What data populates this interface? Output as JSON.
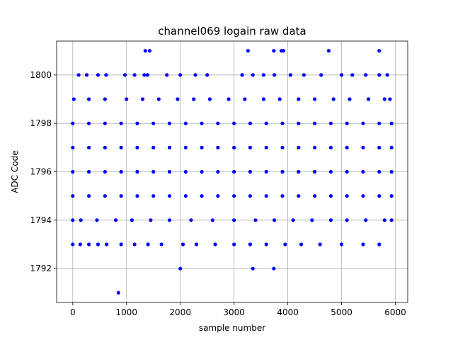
{
  "chart_data": {
    "type": "scatter",
    "title": "channel069 logain raw data",
    "xlabel": "sample number",
    "ylabel": "ADC Code",
    "xlim": [
      -300,
      6230
    ],
    "ylim": [
      1790.6,
      1801.4
    ],
    "xticks": [
      0,
      1000,
      2000,
      3000,
      4000,
      5000,
      6000
    ],
    "yticks": [
      1792,
      1794,
      1796,
      1798,
      1800
    ],
    "grid": true,
    "marker_color": "#0000ff",
    "series": [
      {
        "points": [
          [
            850,
            1791
          ],
          [
            2000,
            1792
          ],
          [
            3350,
            1792
          ],
          [
            3740,
            1792
          ],
          [
            1350,
            1801
          ],
          [
            1430,
            1801
          ],
          [
            3260,
            1801
          ],
          [
            3740,
            1801
          ],
          [
            3880,
            1801
          ],
          [
            3920,
            1801
          ],
          [
            4760,
            1801
          ],
          [
            5700,
            1801
          ],
          [
            0,
            1793
          ],
          [
            140,
            1793
          ],
          [
            300,
            1793
          ],
          [
            470,
            1793
          ],
          [
            630,
            1793
          ],
          [
            900,
            1793
          ],
          [
            1150,
            1793
          ],
          [
            1400,
            1793
          ],
          [
            1650,
            1793
          ],
          [
            2050,
            1793
          ],
          [
            2300,
            1793
          ],
          [
            2650,
            1793
          ],
          [
            3000,
            1793
          ],
          [
            3300,
            1793
          ],
          [
            3600,
            1793
          ],
          [
            3950,
            1793
          ],
          [
            4250,
            1793
          ],
          [
            4600,
            1793
          ],
          [
            5000,
            1793
          ],
          [
            5400,
            1793
          ],
          [
            5700,
            1793
          ],
          [
            0,
            1794
          ],
          [
            150,
            1794
          ],
          [
            450,
            1794
          ],
          [
            800,
            1794
          ],
          [
            1100,
            1794
          ],
          [
            1450,
            1794
          ],
          [
            1800,
            1794
          ],
          [
            2200,
            1794
          ],
          [
            2600,
            1794
          ],
          [
            3000,
            1794
          ],
          [
            3400,
            1794
          ],
          [
            3750,
            1794
          ],
          [
            4100,
            1794
          ],
          [
            4450,
            1794
          ],
          [
            4800,
            1794
          ],
          [
            5100,
            1794
          ],
          [
            5450,
            1794
          ],
          [
            5800,
            1794
          ],
          [
            5930,
            1794
          ],
          [
            0,
            1795
          ],
          [
            300,
            1795
          ],
          [
            600,
            1795
          ],
          [
            900,
            1795
          ],
          [
            1200,
            1795
          ],
          [
            1500,
            1795
          ],
          [
            1800,
            1795
          ],
          [
            2100,
            1795
          ],
          [
            2400,
            1795
          ],
          [
            2700,
            1795
          ],
          [
            3000,
            1795
          ],
          [
            3300,
            1795
          ],
          [
            3600,
            1795
          ],
          [
            3900,
            1795
          ],
          [
            4200,
            1795
          ],
          [
            4500,
            1795
          ],
          [
            4800,
            1795
          ],
          [
            5100,
            1795
          ],
          [
            5400,
            1795
          ],
          [
            5700,
            1795
          ],
          [
            5930,
            1795
          ],
          [
            0,
            1796
          ],
          [
            300,
            1796
          ],
          [
            600,
            1796
          ],
          [
            900,
            1796
          ],
          [
            1200,
            1796
          ],
          [
            1500,
            1796
          ],
          [
            1800,
            1796
          ],
          [
            2100,
            1796
          ],
          [
            2400,
            1796
          ],
          [
            2700,
            1796
          ],
          [
            3000,
            1796
          ],
          [
            3300,
            1796
          ],
          [
            3600,
            1796
          ],
          [
            3900,
            1796
          ],
          [
            4200,
            1796
          ],
          [
            4500,
            1796
          ],
          [
            4800,
            1796
          ],
          [
            5100,
            1796
          ],
          [
            5400,
            1796
          ],
          [
            5700,
            1796
          ],
          [
            5930,
            1796
          ],
          [
            0,
            1797
          ],
          [
            300,
            1797
          ],
          [
            600,
            1797
          ],
          [
            900,
            1797
          ],
          [
            1200,
            1797
          ],
          [
            1500,
            1797
          ],
          [
            1800,
            1797
          ],
          [
            2100,
            1797
          ],
          [
            2400,
            1797
          ],
          [
            2700,
            1797
          ],
          [
            3000,
            1797
          ],
          [
            3300,
            1797
          ],
          [
            3600,
            1797
          ],
          [
            3900,
            1797
          ],
          [
            4200,
            1797
          ],
          [
            4500,
            1797
          ],
          [
            4800,
            1797
          ],
          [
            5100,
            1797
          ],
          [
            5400,
            1797
          ],
          [
            5700,
            1797
          ],
          [
            5930,
            1797
          ],
          [
            0,
            1798
          ],
          [
            300,
            1798
          ],
          [
            600,
            1798
          ],
          [
            900,
            1798
          ],
          [
            1200,
            1798
          ],
          [
            1500,
            1798
          ],
          [
            1800,
            1798
          ],
          [
            2100,
            1798
          ],
          [
            2400,
            1798
          ],
          [
            2700,
            1798
          ],
          [
            3000,
            1798
          ],
          [
            3300,
            1798
          ],
          [
            3600,
            1798
          ],
          [
            3900,
            1798
          ],
          [
            4200,
            1798
          ],
          [
            4500,
            1798
          ],
          [
            4800,
            1798
          ],
          [
            5100,
            1798
          ],
          [
            5400,
            1798
          ],
          [
            5700,
            1798
          ],
          [
            5930,
            1798
          ],
          [
            20,
            1799
          ],
          [
            300,
            1799
          ],
          [
            600,
            1799
          ],
          [
            1000,
            1799
          ],
          [
            1300,
            1799
          ],
          [
            1600,
            1799
          ],
          [
            1950,
            1799
          ],
          [
            2250,
            1799
          ],
          [
            2550,
            1799
          ],
          [
            2900,
            1799
          ],
          [
            3200,
            1799
          ],
          [
            3550,
            1799
          ],
          [
            3850,
            1799
          ],
          [
            4200,
            1799
          ],
          [
            4500,
            1799
          ],
          [
            4850,
            1799
          ],
          [
            5150,
            1799
          ],
          [
            5500,
            1799
          ],
          [
            5800,
            1799
          ],
          [
            5900,
            1799
          ],
          [
            110,
            1800
          ],
          [
            260,
            1800
          ],
          [
            470,
            1800
          ],
          [
            620,
            1800
          ],
          [
            970,
            1800
          ],
          [
            1150,
            1800
          ],
          [
            1330,
            1800
          ],
          [
            1390,
            1800
          ],
          [
            1750,
            1800
          ],
          [
            2000,
            1800
          ],
          [
            2280,
            1800
          ],
          [
            2500,
            1800
          ],
          [
            3150,
            1800
          ],
          [
            3350,
            1800
          ],
          [
            3550,
            1800
          ],
          [
            3750,
            1800
          ],
          [
            4050,
            1800
          ],
          [
            4300,
            1800
          ],
          [
            4620,
            1800
          ],
          [
            5000,
            1800
          ],
          [
            5200,
            1800
          ],
          [
            5450,
            1800
          ],
          [
            5700,
            1800
          ],
          [
            5850,
            1800
          ]
        ]
      }
    ]
  }
}
